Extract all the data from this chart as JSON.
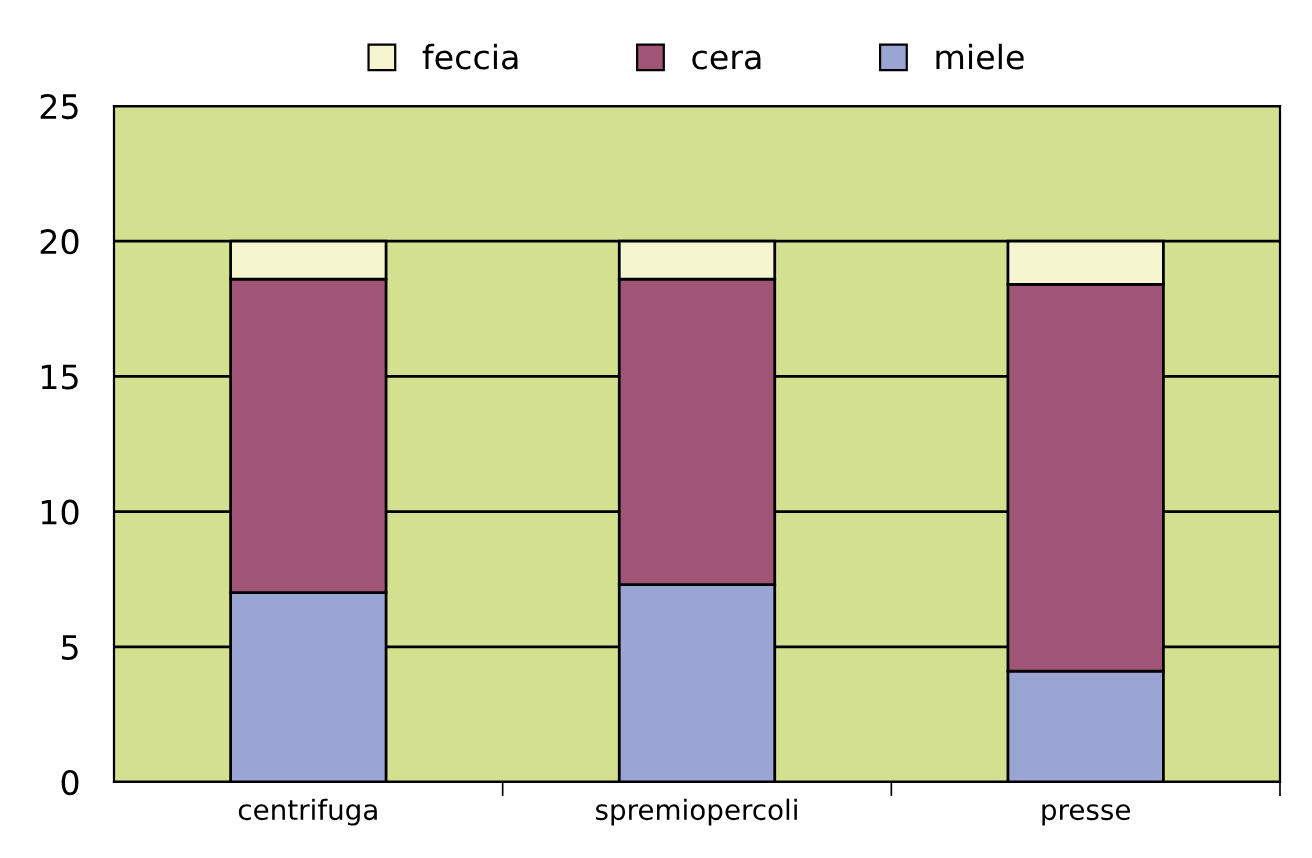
{
  "chart_data": {
    "type": "bar",
    "stacked": true,
    "categories": [
      "centrifuga",
      "spremiopercoli",
      "presse"
    ],
    "series": [
      {
        "name": "miele",
        "color": "#9aa5d4",
        "values": [
          7.0,
          7.3,
          4.1
        ]
      },
      {
        "name": "cera",
        "color": "#a05577",
        "values": [
          11.6,
          11.3,
          14.3
        ]
      },
      {
        "name": "feccia",
        "color": "#f5f5d0",
        "values": [
          1.4,
          1.4,
          1.6
        ]
      }
    ],
    "ylim": [
      0,
      25
    ],
    "yticks": [
      0,
      5,
      10,
      15,
      20,
      25
    ],
    "grid": "y",
    "legend": "top"
  }
}
